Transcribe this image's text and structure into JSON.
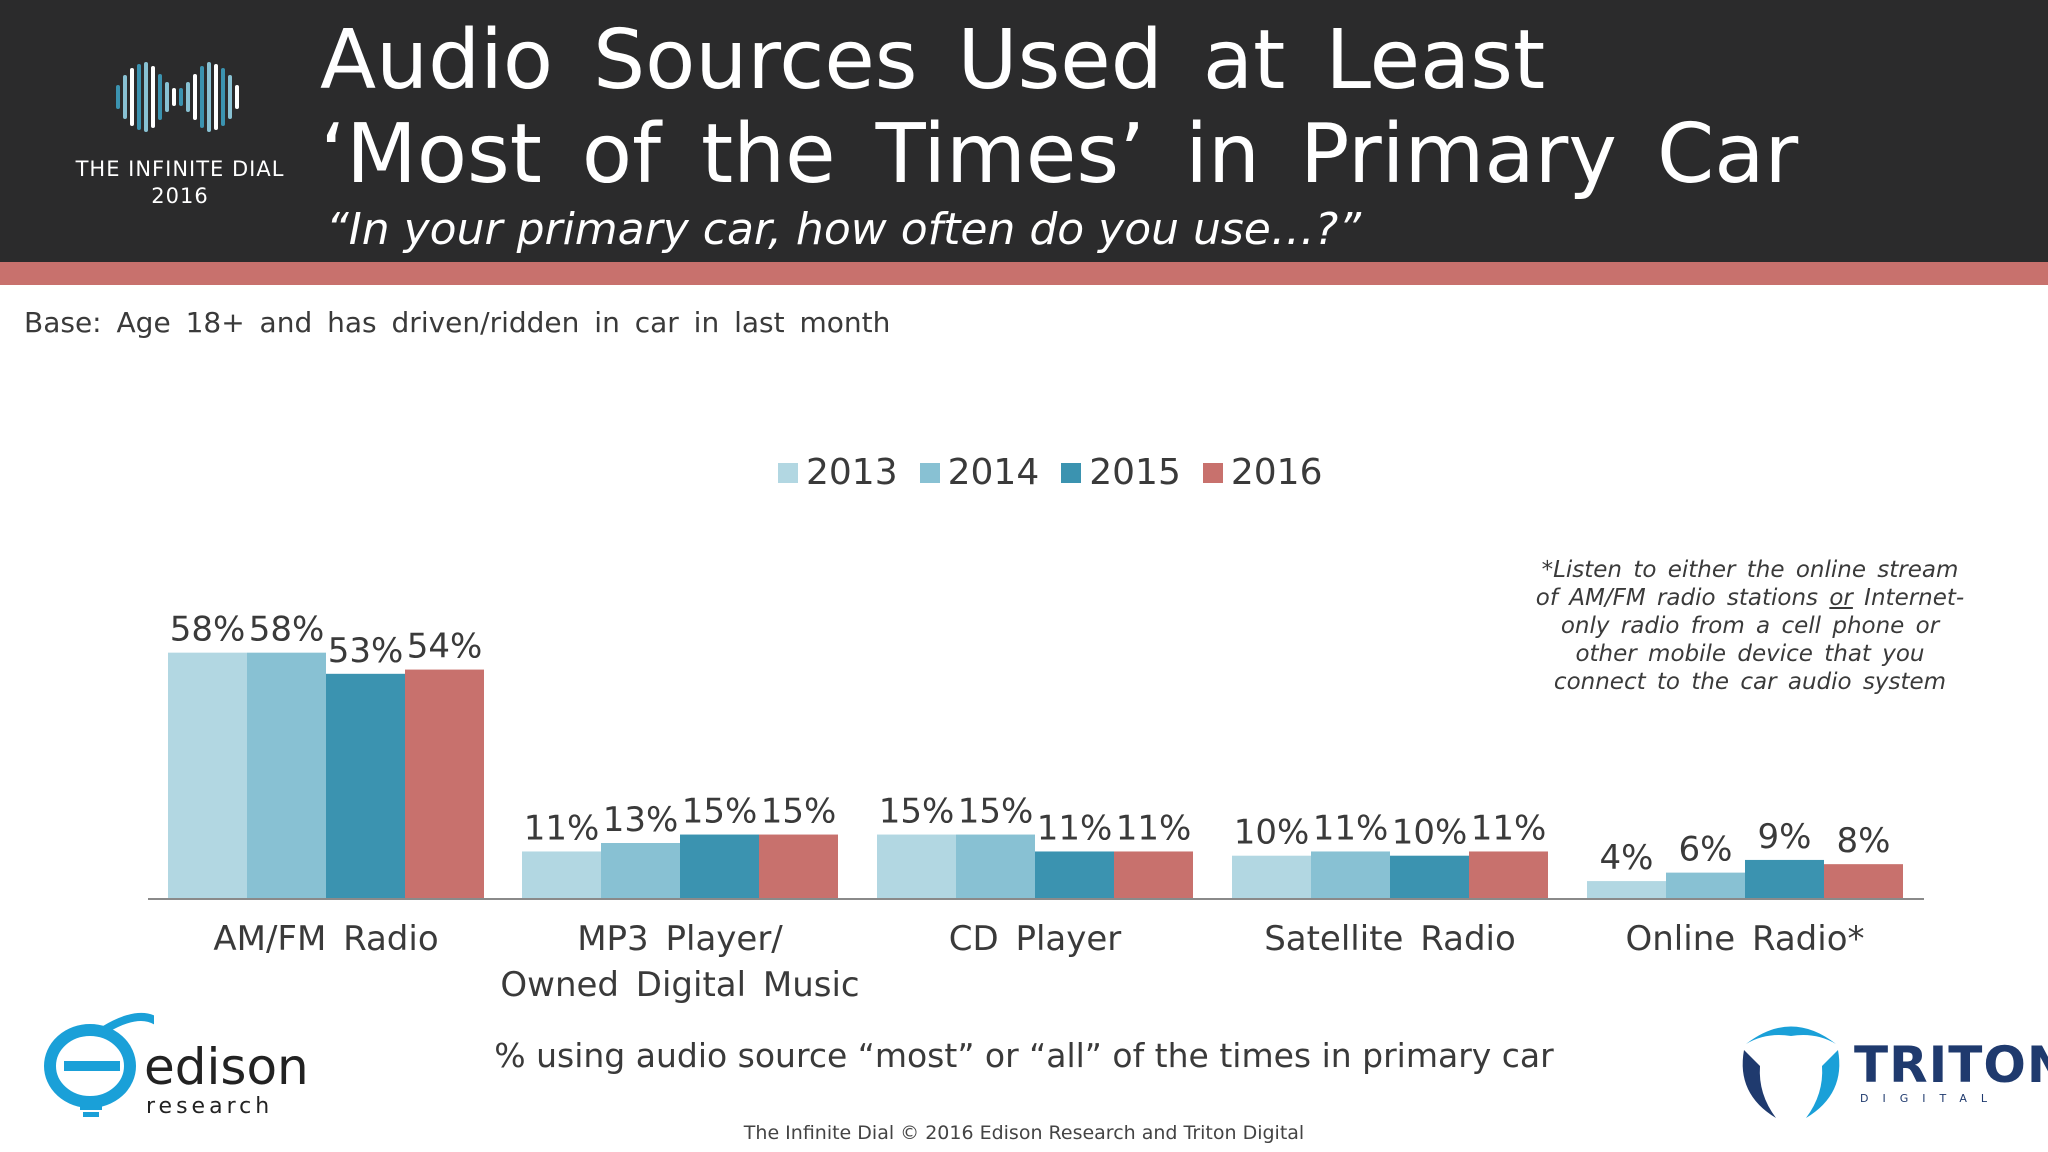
{
  "header": {
    "brand_line1": "THE INFINITE DIAL",
    "brand_line2": "2016",
    "title_line1": "Audio Sources Used at Least",
    "title_line2": "‘Most of the Times’ in Primary Car",
    "subtitle": "“In your primary car, how often do you use…?”"
  },
  "base_note": "Base: Age 18+ and has driven/ridden in car in last month",
  "footnote": {
    "line1": "*Listen to either the online stream",
    "line2_a": "of AM/FM radio stations ",
    "line2_or": "or",
    "line2_b": " Internet-",
    "line3": "only radio from a cell phone or",
    "line4": "other mobile device that you",
    "line5": "connect to the car audio system"
  },
  "caption": "% using audio source “most” or “all” of the times in primary car",
  "copyright": "The Infinite Dial   © 2016 Edison Research and Triton Digital",
  "logos": {
    "edison_name": "edison",
    "edison_sub": "research",
    "triton_name": "TRITON",
    "triton_sub": "DIGITAL"
  },
  "colors": {
    "header_bg": "#2b2b2c",
    "stripe": "#c8716d",
    "s2013": "#b2d7e2",
    "s2014": "#88c1d3",
    "s2015": "#3b93b0",
    "s2016": "#c8716d"
  },
  "chart_data": {
    "type": "bar",
    "title": "Audio Sources Used at Least ‘Most of the Times’ in Primary Car",
    "xlabel": "% using audio source “most” or “all” of the times in primary car",
    "ylabel": "",
    "ylim": [
      0,
      60
    ],
    "grid": false,
    "legend_position": "top-center",
    "categories": [
      [
        "AM/FM Radio"
      ],
      [
        "MP3 Player/",
        "Owned Digital Music"
      ],
      [
        "CD Player"
      ],
      [
        "Satellite Radio"
      ],
      [
        "Online Radio*"
      ]
    ],
    "series": [
      {
        "name": "2013",
        "color": "#b2d7e2",
        "values": [
          58,
          11,
          15,
          10,
          4
        ]
      },
      {
        "name": "2014",
        "color": "#88c1d3",
        "values": [
          58,
          13,
          15,
          11,
          6
        ]
      },
      {
        "name": "2015",
        "color": "#3b93b0",
        "values": [
          53,
          15,
          11,
          10,
          9
        ]
      },
      {
        "name": "2016",
        "color": "#c8716d",
        "values": [
          54,
          15,
          11,
          11,
          8
        ]
      }
    ],
    "value_suffix": "%"
  }
}
